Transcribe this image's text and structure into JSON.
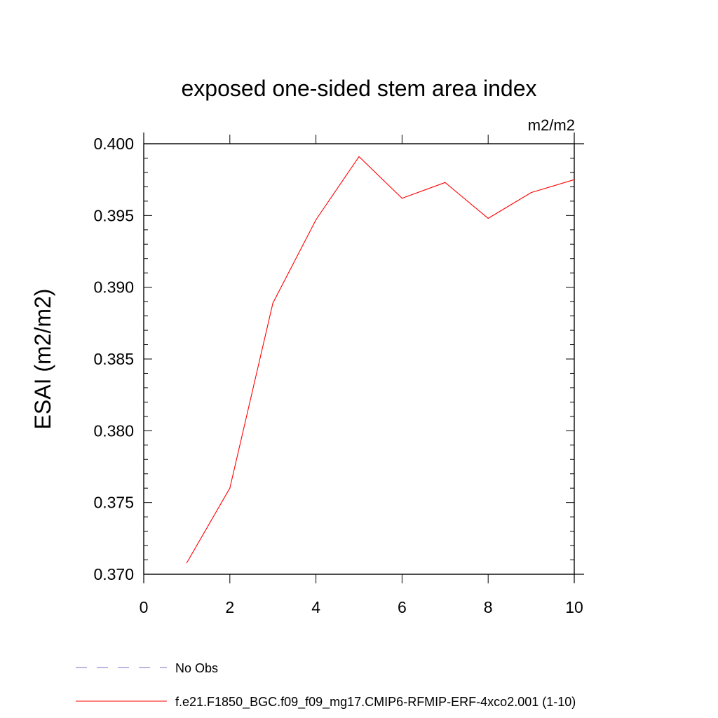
{
  "chart_data": {
    "type": "line",
    "title": "exposed one-sided stem area index",
    "units_label": "m2/m2",
    "xlabel": "",
    "ylabel": "ESAI  (m2/m2)",
    "xlim": [
      0,
      10
    ],
    "ylim": [
      0.37,
      0.4
    ],
    "x_ticks": [
      0,
      2,
      4,
      6,
      8,
      10
    ],
    "x_tick_labels": [
      "0",
      "2",
      "4",
      "6",
      "8",
      "10"
    ],
    "y_ticks": [
      0.37,
      0.375,
      0.38,
      0.385,
      0.39,
      0.395,
      0.4
    ],
    "y_tick_labels": [
      "0.370",
      "0.375",
      "0.380",
      "0.385",
      "0.390",
      "0.395",
      "0.400"
    ],
    "grid": false,
    "series": [
      {
        "name": "f.e21.F1850_BGC.f09_f09_mg17.CMIP6-RFMIP-ERF-4xco2.001 (1-10)",
        "color": "#ff0000",
        "dash": "solid",
        "x": [
          1,
          2,
          3,
          4,
          5,
          6,
          7,
          8,
          9,
          10
        ],
        "values": [
          0.3708,
          0.376,
          0.3889,
          0.3947,
          0.3991,
          0.3962,
          0.3973,
          0.3948,
          0.3966,
          0.3975
        ]
      }
    ],
    "legend": [
      {
        "label": "No Obs",
        "color": "#7b68c8",
        "dash": "dashed"
      },
      {
        "label": "f.e21.F1850_BGC.f09_f09_mg17.CMIP6-RFMIP-ERF-4xco2.001 (1-10)",
        "color": "#ff0000",
        "dash": "solid"
      }
    ],
    "legend_position": "bottom-left"
  }
}
